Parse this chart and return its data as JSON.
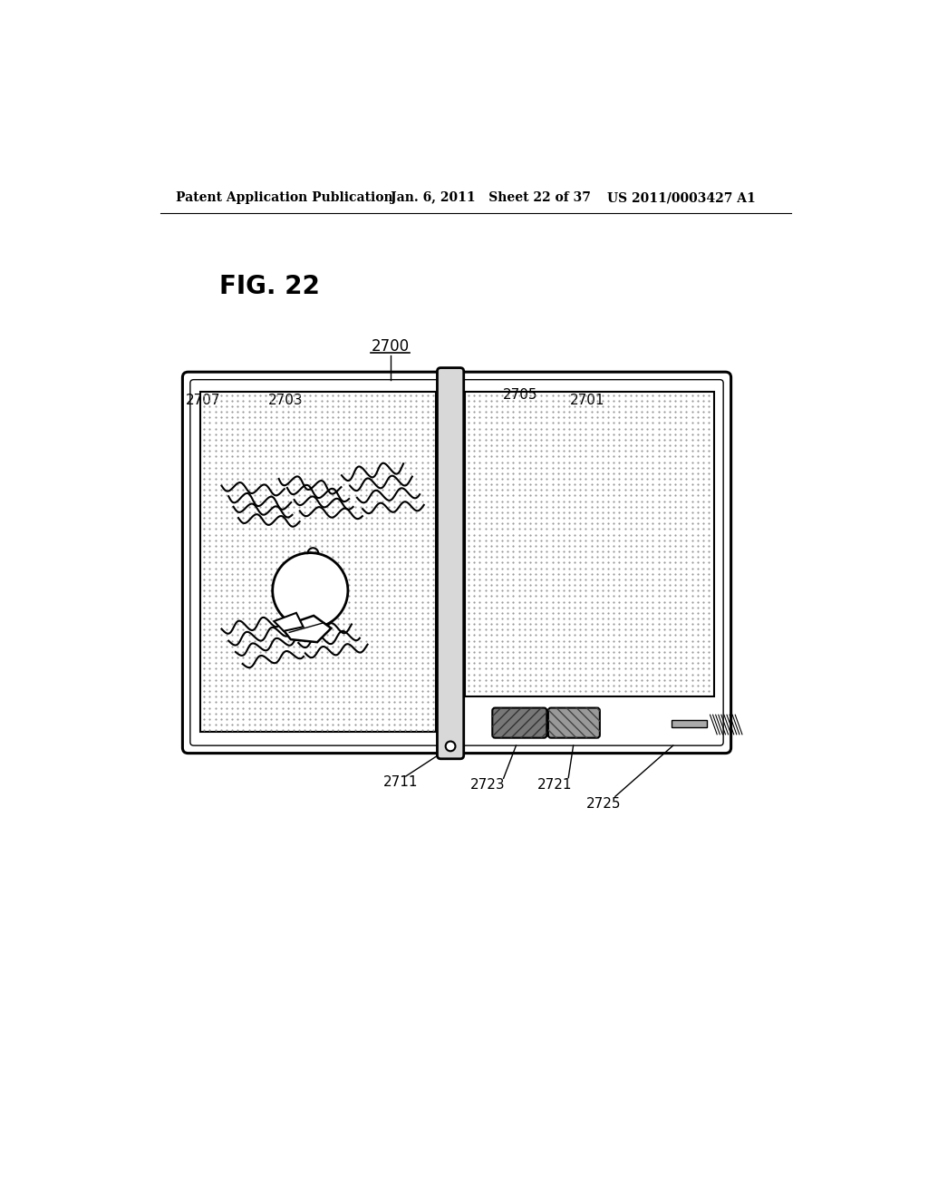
{
  "bg_color": "#ffffff",
  "header_left": "Patent Application Publication",
  "header_mid": "Jan. 6, 2011   Sheet 22 of 37",
  "header_right": "US 2011/0003427 A1",
  "fig_label": "FIG. 22",
  "label_2700": "2700",
  "label_2705": "2705",
  "label_2707": "2707",
  "label_2703": "2703",
  "label_2701": "2701",
  "label_2711": "2711",
  "label_2723": "2723",
  "label_2721": "2721",
  "label_2725": "2725"
}
